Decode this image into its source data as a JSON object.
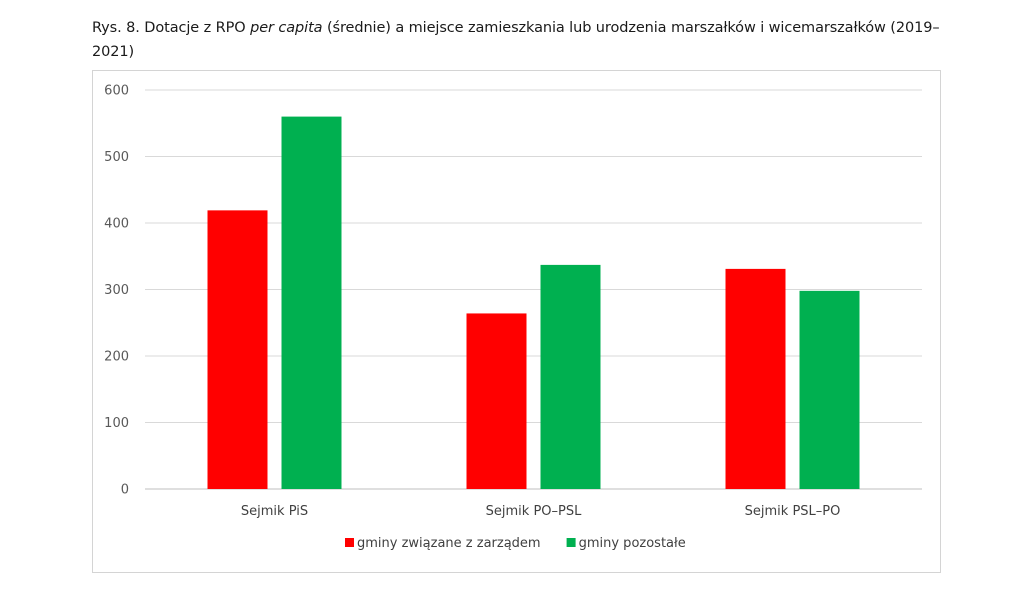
{
  "caption": {
    "prefix": "Rys. 8. Dotacje z RPO ",
    "italic": "per capita",
    "suffix": " (średnie) a miejsce zamieszkania lub urodzenia marszałków i wicemarszałków (2019–2021)"
  },
  "chart_data": {
    "type": "bar",
    "title": "Dotacje z RPO per capita (średnie) a miejsce zamieszkania lub urodzenia marszałków i wicemarszałków (2019–2021)",
    "categories": [
      "Sejmik PiS",
      "Sejmik PO–PSL",
      "Sejmik PSL–PO"
    ],
    "series": [
      {
        "name": "gminy związane z zarządem",
        "color": "#ff0000",
        "values": [
          419,
          264,
          331
        ]
      },
      {
        "name": "gminy pozostałe",
        "color": "#00b050",
        "values": [
          560,
          337,
          298
        ]
      }
    ],
    "ylim": [
      0,
      600
    ],
    "yticks": [
      0,
      100,
      200,
      300,
      400,
      500,
      600
    ],
    "xlabel": "",
    "ylabel": "",
    "grid": true,
    "legend_position": "bottom"
  }
}
